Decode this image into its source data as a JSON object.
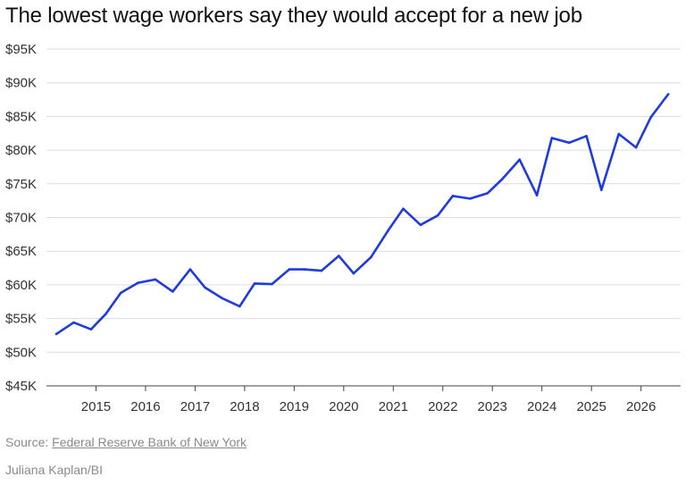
{
  "chart_data": {
    "type": "line",
    "title": "The lowest wage workers say they would accept for a new job",
    "xlabel": "",
    "ylabel": "",
    "ylim": [
      45000,
      95000
    ],
    "xlim": [
      2014.0,
      2026.8
    ],
    "y_ticks": [
      {
        "value": 95000,
        "label": "$95K"
      },
      {
        "value": 90000,
        "label": "$90K"
      },
      {
        "value": 85000,
        "label": "$85K"
      },
      {
        "value": 80000,
        "label": "$80K"
      },
      {
        "value": 75000,
        "label": "$75K"
      },
      {
        "value": 70000,
        "label": "$70K"
      },
      {
        "value": 65000,
        "label": "$65K"
      },
      {
        "value": 60000,
        "label": "$60K"
      },
      {
        "value": 55000,
        "label": "$55K"
      },
      {
        "value": 50000,
        "label": "$50K"
      },
      {
        "value": 45000,
        "label": "$45K"
      }
    ],
    "x_ticks": [
      {
        "value": 2015,
        "label": "2015"
      },
      {
        "value": 2016,
        "label": "2016"
      },
      {
        "value": 2017,
        "label": "2017"
      },
      {
        "value": 2018,
        "label": "2018"
      },
      {
        "value": 2019,
        "label": "2019"
      },
      {
        "value": 2020,
        "label": "2020"
      },
      {
        "value": 2021,
        "label": "2021"
      },
      {
        "value": 2022,
        "label": "2022"
      },
      {
        "value": 2023,
        "label": "2023"
      },
      {
        "value": 2024,
        "label": "2024"
      },
      {
        "value": 2025,
        "label": "2025"
      },
      {
        "value": 2026,
        "label": "2026"
      }
    ],
    "grid": true,
    "series": [
      {
        "color": "#1f3be0",
        "points": [
          {
            "x": 2014.2,
            "y": 52700
          },
          {
            "x": 2014.55,
            "y": 54400
          },
          {
            "x": 2014.9,
            "y": 53400
          },
          {
            "x": 2015.2,
            "y": 55700
          },
          {
            "x": 2015.5,
            "y": 58800
          },
          {
            "x": 2015.85,
            "y": 60300
          },
          {
            "x": 2016.2,
            "y": 60800
          },
          {
            "x": 2016.55,
            "y": 59000
          },
          {
            "x": 2016.9,
            "y": 62300
          },
          {
            "x": 2017.2,
            "y": 59600
          },
          {
            "x": 2017.55,
            "y": 58000
          },
          {
            "x": 2017.9,
            "y": 56800
          },
          {
            "x": 2018.2,
            "y": 60200
          },
          {
            "x": 2018.55,
            "y": 60100
          },
          {
            "x": 2018.9,
            "y": 62300
          },
          {
            "x": 2019.2,
            "y": 62300
          },
          {
            "x": 2019.55,
            "y": 62100
          },
          {
            "x": 2019.9,
            "y": 64300
          },
          {
            "x": 2020.2,
            "y": 61700
          },
          {
            "x": 2020.55,
            "y": 64100
          },
          {
            "x": 2020.9,
            "y": 68100
          },
          {
            "x": 2021.2,
            "y": 71300
          },
          {
            "x": 2021.55,
            "y": 68900
          },
          {
            "x": 2021.9,
            "y": 70300
          },
          {
            "x": 2022.2,
            "y": 73200
          },
          {
            "x": 2022.55,
            "y": 72800
          },
          {
            "x": 2022.9,
            "y": 73600
          },
          {
            "x": 2023.2,
            "y": 75700
          },
          {
            "x": 2023.55,
            "y": 78600
          },
          {
            "x": 2023.9,
            "y": 73300
          },
          {
            "x": 2024.2,
            "y": 81800
          },
          {
            "x": 2024.55,
            "y": 81100
          },
          {
            "x": 2024.9,
            "y": 82100
          },
          {
            "x": 2025.2,
            "y": 74100
          },
          {
            "x": 2025.55,
            "y": 82400
          },
          {
            "x": 2025.9,
            "y": 80400
          },
          {
            "x": 2026.2,
            "y": 84900
          },
          {
            "x": 2026.55,
            "y": 88300
          }
        ]
      }
    ]
  },
  "footer": {
    "source_prefix": "Source: ",
    "source_link": "Federal Reserve Bank of New York",
    "credit": "Juliana Kaplan/BI"
  }
}
